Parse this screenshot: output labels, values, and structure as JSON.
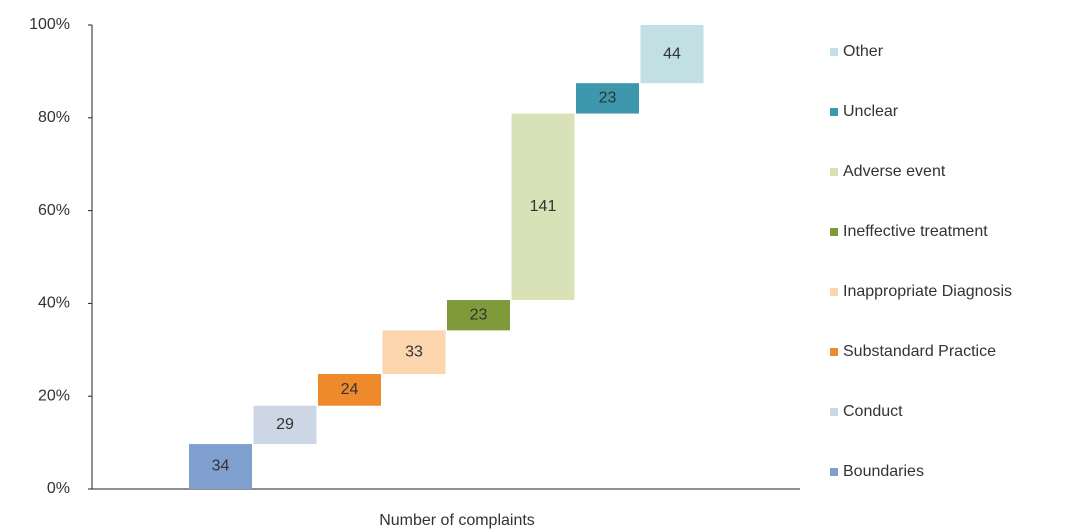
{
  "chart_data": {
    "type": "waterfall",
    "xlabel": "Number of complaints",
    "categories": [
      "Boundaries",
      "Conduct",
      "Substandard Practice",
      "Inappropriate Diagnosis",
      "Ineffective treatment",
      "Adverse event",
      "Unclear",
      "Other"
    ],
    "values": [
      34,
      29,
      24,
      33,
      23,
      141,
      23,
      44
    ],
    "colors": [
      "#7f9fcf",
      "#cdd6e4",
      "#ef8a2c",
      "#fbd6ae",
      "#7f9a3a",
      "#d8e2b6",
      "#3d98ad",
      "#c2e0e3"
    ],
    "ylim": [
      0,
      100
    ],
    "yticks": [
      {
        "value": 0,
        "label": "0%"
      },
      {
        "value": 20,
        "label": "20%"
      },
      {
        "value": 40,
        "label": "40%"
      },
      {
        "value": 60,
        "label": "60%"
      },
      {
        "value": 80,
        "label": "80%"
      },
      {
        "value": 100,
        "label": "100%"
      }
    ],
    "legend": "right"
  }
}
